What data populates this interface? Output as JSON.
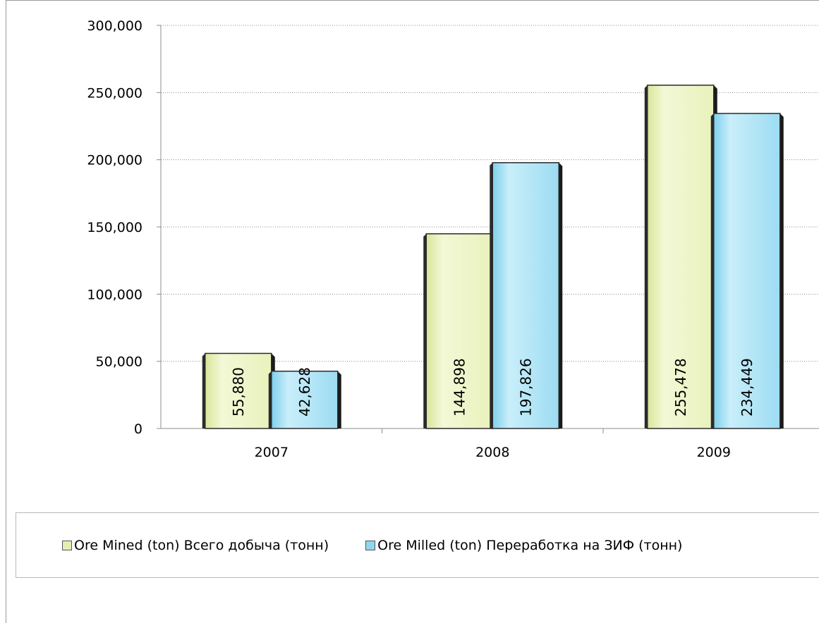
{
  "chart_data": {
    "type": "bar",
    "categories": [
      "2007",
      "2008",
      "2009"
    ],
    "series": [
      {
        "name": "Ore Mined (ton) Всего добыча  (тонн)",
        "values": [
          55880,
          144898,
          255478
        ],
        "labels": [
          "55,880",
          "144,898",
          "255,478"
        ],
        "color": "#eef5c6"
      },
      {
        "name": "Ore Milled (ton) Переработка на ЗИФ (тонн)",
        "values": [
          42628,
          197826,
          234449
        ],
        "labels": [
          "42,628",
          "197,826",
          "234,449"
        ],
        "color": "#a8e1f3"
      }
    ],
    "y_ticks": [
      "0",
      "50,000",
      "100,000",
      "150,000",
      "200,000",
      "250,000",
      "300,000"
    ],
    "ylim": [
      0,
      300000
    ],
    "grid": true,
    "legend_position": "bottom"
  }
}
